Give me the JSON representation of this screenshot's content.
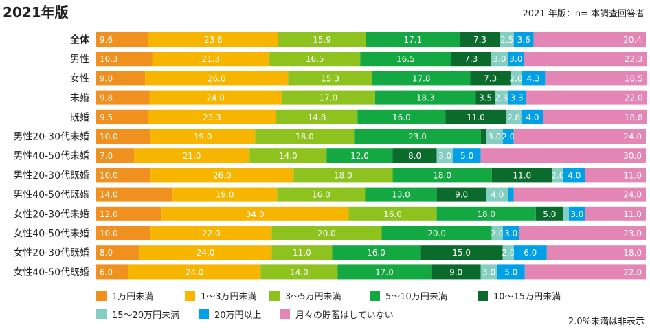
{
  "page": {
    "title": "2021年版",
    "note": "2021 年版：n= 本調査回答者",
    "footnote": "2.0%未満は非表示"
  },
  "chart_data": {
    "type": "bar",
    "orientation": "horizontal",
    "stacked": true,
    "percent_total": 100,
    "hide_labels_below": 2.0,
    "categories": [
      "全体",
      "男性",
      "女性",
      "未婚",
      "既婚",
      "男性20-30代未婚",
      "男性40-50代未婚",
      "男性20-30代既婚",
      "男性40-50代既婚",
      "女性20-30代未婚",
      "女性40-50代未婚",
      "女性20-30代既婚",
      "女性40-50代既婚"
    ],
    "bold_categories": [
      "全体"
    ],
    "series": [
      {
        "name": "1万円未満",
        "color": "#f0901e",
        "values": [
          9.6,
          10.3,
          9.0,
          9.8,
          9.5,
          10.0,
          7.0,
          10.0,
          14.0,
          12.0,
          10.0,
          8.0,
          6.0
        ],
        "labels": [
          "9.6",
          "10.3",
          "9.0",
          "9.8",
          "9.5",
          "10.0",
          "7.0",
          "10.0",
          "14.0",
          "12.0",
          "10.0",
          "8.0",
          "6.0"
        ]
      },
      {
        "name": "1〜3万円未満",
        "color": "#f7b500",
        "values": [
          23.6,
          21.3,
          26.0,
          24.0,
          23.3,
          19.0,
          21.0,
          26.0,
          19.0,
          34.0,
          22.0,
          24.0,
          24.0
        ],
        "labels": [
          "23.6",
          "21.3",
          "26.0",
          "24.0",
          "23.3",
          "19.0",
          "21.0",
          "26.0",
          "19.0",
          "34.0",
          "22.0",
          "24.0",
          "24.0"
        ]
      },
      {
        "name": "3〜5万円未満",
        "color": "#8dc21f",
        "values": [
          15.9,
          16.5,
          15.3,
          17.0,
          14.8,
          18.0,
          14.0,
          18.0,
          16.0,
          16.0,
          20.0,
          11.0,
          14.0
        ],
        "labels": [
          "15.9",
          "16.5",
          "15.3",
          "17.0",
          "14.8",
          "18.0",
          "14.0",
          "18.0",
          "16.0",
          "16.0",
          "20.0",
          "11.0",
          "14.0"
        ]
      },
      {
        "name": "5〜10万円未満",
        "color": "#14a843",
        "values": [
          17.1,
          16.5,
          17.8,
          18.3,
          16.0,
          23.0,
          12.0,
          18.0,
          13.0,
          18.0,
          20.0,
          16.0,
          17.0
        ],
        "labels": [
          "17.1",
          "16.5",
          "17.8",
          "18.3",
          "16.0",
          "23.0",
          "12.0",
          "18.0",
          "13.0",
          "18.0",
          "20.0",
          "16.0",
          "17.0"
        ]
      },
      {
        "name": "10〜15万円未満",
        "color": "#0b6b2c",
        "values": [
          7.3,
          7.3,
          7.3,
          3.5,
          11.0,
          1.0,
          8.0,
          11.0,
          9.0,
          5.0,
          0.0,
          15.0,
          9.0
        ],
        "labels": [
          "7.3",
          "7.3",
          "7.3",
          "3.5",
          "11.0",
          "",
          "8.0",
          "11.0",
          "9.0",
          "5.0",
          "",
          "15.0",
          "9.0"
        ]
      },
      {
        "name": "15〜20万円未満",
        "color": "#84cfc2",
        "values": [
          2.5,
          3.0,
          2.0,
          2.3,
          2.8,
          3.0,
          3.0,
          2.0,
          4.0,
          1.0,
          2.0,
          2.0,
          3.0
        ],
        "labels": [
          "2.5",
          "3.0",
          "2.0",
          "2.3",
          "2.8",
          "3.0",
          "3.0",
          "2.0",
          "4.0",
          "",
          "2.0",
          "2.0",
          "3.0"
        ]
      },
      {
        "name": "20万円以上",
        "color": "#00a0e9",
        "values": [
          3.6,
          3.0,
          4.3,
          3.3,
          4.0,
          2.0,
          5.0,
          4.0,
          1.0,
          3.0,
          3.0,
          6.0,
          5.0
        ],
        "labels": [
          "3.6",
          "3.0",
          "4.3",
          "3.3",
          "4.0",
          "2.0",
          "5.0",
          "4.0",
          "",
          "3.0",
          "3.0",
          "6.0",
          "5.0"
        ]
      },
      {
        "name": "月々の貯蓄はしていない",
        "color": "#e486b5",
        "values": [
          20.4,
          22.3,
          18.5,
          22.0,
          18.8,
          24.0,
          30.0,
          11.0,
          24.0,
          11.0,
          23.0,
          18.0,
          22.0
        ],
        "labels": [
          "20.4",
          "22.3",
          "18.5",
          "22.0",
          "18.8",
          "24.0",
          "30.0",
          "11.0",
          "24.0",
          "11.0",
          "23.0",
          "18.0",
          "22.0"
        ]
      }
    ]
  }
}
